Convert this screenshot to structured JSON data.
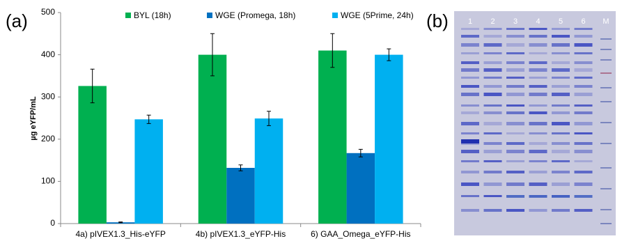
{
  "chart_data": {
    "type": "bar",
    "label": "(a)",
    "ylabel": "µg eYFP/mL",
    "categories": [
      "4a) pIVEX1.3_His-eYFP",
      "4b) pIVEX1.3_eYFP-His",
      "6) GAA_Omega_eYFP-His"
    ],
    "series": [
      {
        "name": "BYL (18h)",
        "color": "#00b050",
        "values": [
          326,
          400,
          410
        ],
        "errors": [
          40,
          50,
          40
        ]
      },
      {
        "name": "WGE (Promega, 18h)",
        "color": "#0070c0",
        "values": [
          3,
          132,
          167
        ],
        "errors": [
          1,
          7,
          9
        ]
      },
      {
        "name": "WGE (5Prime, 24h)",
        "color": "#00b0f0",
        "values": [
          247,
          249,
          400
        ],
        "errors": [
          10,
          17,
          14
        ]
      }
    ],
    "ylim": [
      0,
      500
    ],
    "yticks": [
      0,
      100,
      200,
      300,
      400,
      500
    ],
    "grid": false,
    "legend": "top"
  },
  "gel": {
    "label": "(b)",
    "lanes": [
      "1",
      "2",
      "3",
      "4",
      "5",
      "6",
      "M"
    ]
  }
}
